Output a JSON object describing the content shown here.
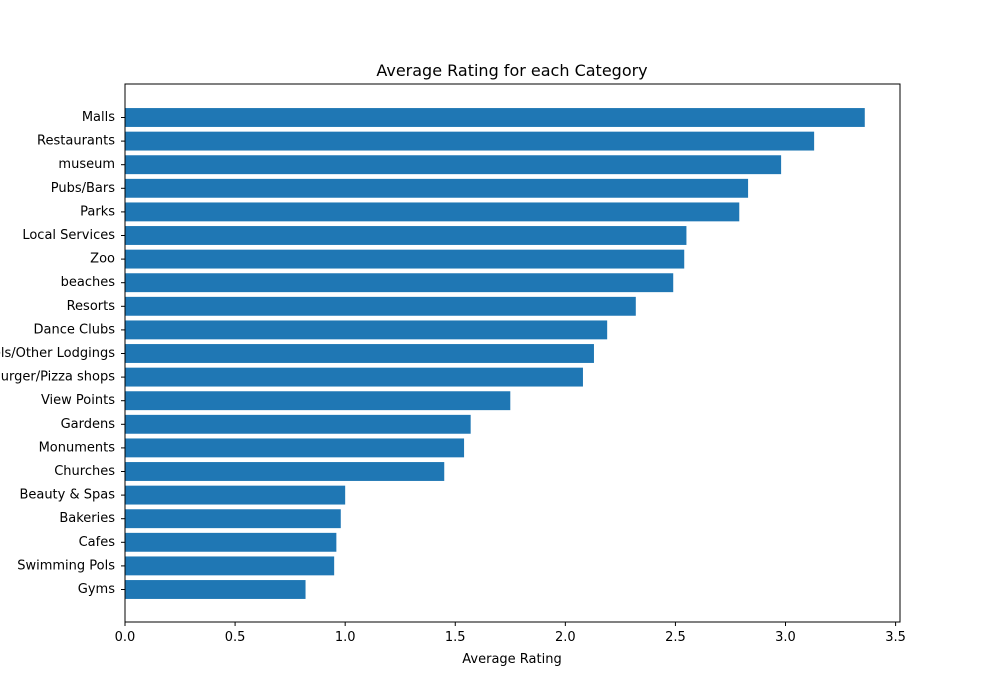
{
  "chart_data": {
    "type": "bar",
    "orientation": "horizontal",
    "title": "Average Rating for each Category",
    "xlabel": "Average Rating",
    "ylabel": "",
    "xlim": [
      0,
      3.52
    ],
    "xticks": [
      "0.0",
      "0.5",
      "1.0",
      "1.5",
      "2.0",
      "2.5",
      "3.0",
      "3.5"
    ],
    "xtick_values": [
      0,
      0.5,
      1.0,
      1.5,
      2.0,
      2.5,
      3.0,
      3.5
    ],
    "grid": false,
    "bar_color": "#1f77b4",
    "categories": [
      "Malls",
      "Restaurants",
      "museum",
      "Pubs/Bars",
      "Parks",
      "Local Services",
      "Zoo",
      "beaches",
      "Resorts",
      "Dance Clubs",
      "Hotels/Other Lodgings",
      "Burger/Pizza shops",
      "View Points",
      "Gardens",
      "Monuments",
      "Churches",
      "Beauty & Spas",
      "Bakeries",
      "Cafes",
      "Swimming Pols",
      "Gyms"
    ],
    "values": [
      3.36,
      3.13,
      2.98,
      2.83,
      2.79,
      2.55,
      2.54,
      2.49,
      2.32,
      2.19,
      2.13,
      2.08,
      1.75,
      1.57,
      1.54,
      1.45,
      1.0,
      0.98,
      0.96,
      0.95,
      0.82
    ]
  }
}
